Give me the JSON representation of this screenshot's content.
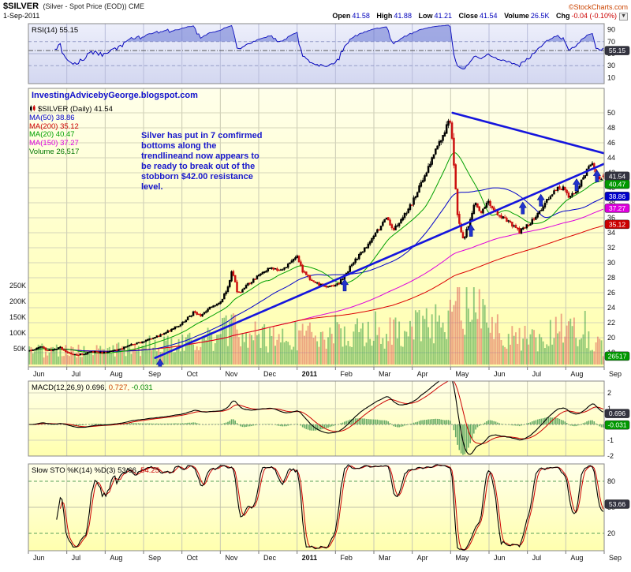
{
  "header": {
    "symbol": "$SILVER",
    "description": "(Silver - Spot Price (EOD)) CME",
    "credit": "©StockCharts.com",
    "date": "1-Sep-2011",
    "quote": {
      "open_label": "Open",
      "open_value": "41.58",
      "high_label": "High",
      "high_value": "41.88",
      "low_label": "Low",
      "low_value": "41.21",
      "close_label": "Close",
      "close_value": "41.54",
      "volume_label": "Volume",
      "volume_value": "26.5K",
      "chg_label": "Chg",
      "chg_value": "-0.04 (-0.10%)"
    },
    "menu_icon": "▼"
  },
  "rsi_panel": {
    "label": "RSI(14) 55.15",
    "axis": [
      {
        "text": "90",
        "v": 90
      },
      {
        "text": "70",
        "v": 70
      },
      {
        "text": "50",
        "v": 50
      },
      {
        "text": "30",
        "v": 30
      },
      {
        "text": "10",
        "v": 10
      }
    ],
    "tag": {
      "text": "55.15",
      "v": 55.15,
      "bg": "#333340"
    }
  },
  "main_panel": {
    "blog_text": "InvestingAdvicebyGeorge.blogspot.com",
    "legend": [
      {
        "label": "$SILVER (Daily) 41.54"
      },
      {
        "label": "MA(50) 38.86"
      },
      {
        "label": "MA(200) 35.12"
      },
      {
        "label": "MA(20) 40.47"
      },
      {
        "label": "MA(150) 37.27"
      },
      {
        "label": "Volume 26,517"
      }
    ],
    "annotation": {
      "lines": [
        "Silver has put in 7 comfirmed",
        "bottoms along the",
        "trendlineand now appears to",
        "be ready to break out of the",
        "stobborn $42.00 resistance",
        "level."
      ]
    },
    "price_axis": [
      {
        "text": "50",
        "v": 50
      },
      {
        "text": "48",
        "v": 48
      },
      {
        "text": "46",
        "v": 46
      },
      {
        "text": "44",
        "v": 44
      },
      {
        "text": "42",
        "v": 42
      },
      {
        "text": "40",
        "v": 40
      },
      {
        "text": "38",
        "v": 38
      },
      {
        "text": "36",
        "v": 36
      },
      {
        "text": "34",
        "v": 34
      },
      {
        "text": "32",
        "v": 32
      },
      {
        "text": "30",
        "v": 30
      },
      {
        "text": "28",
        "v": 28
      },
      {
        "text": "26",
        "v": 26
      },
      {
        "text": "24",
        "v": 24
      },
      {
        "text": "22",
        "v": 22
      },
      {
        "text": "20",
        "v": 20
      },
      {
        "text": "18",
        "v": 18
      }
    ],
    "volume_axis": [
      {
        "text": "250K",
        "k": 250
      },
      {
        "text": "200K",
        "k": 200
      },
      {
        "text": "150K",
        "k": 150
      },
      {
        "text": "100K",
        "k": 100
      },
      {
        "text": "50K",
        "k": 50
      }
    ],
    "price_tags": [
      {
        "text": "41.54",
        "v": 41.54,
        "bg": "#333340"
      },
      {
        "text": "40.47",
        "v": 40.47,
        "bg": "#009900"
      },
      {
        "text": "38.86",
        "v": 38.86,
        "bg": "#0000cc"
      },
      {
        "text": "37.27",
        "v": 37.27,
        "bg": "#dd00dd"
      },
      {
        "text": "35.12",
        "v": 35.12,
        "bg": "#cc0000"
      }
    ],
    "volume_tag": {
      "text": "26517",
      "k": 26.5,
      "bg": "#009900"
    }
  },
  "macd_panel": {
    "name": "MACD(12,26,9)",
    "v1": "0.696,",
    "v2": "0.727,",
    "v3": "-0.031",
    "axis": [
      {
        "text": "2",
        "v": 2
      },
      {
        "text": "1",
        "v": 1
      },
      {
        "text": "-1",
        "v": -1
      },
      {
        "text": "-2",
        "v": -2
      }
    ],
    "tags": [
      {
        "text": "0.696",
        "v": 0.696,
        "bg": "#333340"
      },
      {
        "text": "-0.031",
        "v": -0.031,
        "bg": "#009900"
      }
    ]
  },
  "sto_panel": {
    "name": "Slow STO %K(14) %D(3)",
    "v1": "53.66,",
    "v2": "54.25",
    "axis": [
      {
        "text": "80",
        "v": 80
      },
      {
        "text": "50",
        "v": 50
      },
      {
        "text": "20",
        "v": 20
      }
    ],
    "tag": {
      "text": "53.66",
      "v": 53.66,
      "bg": "#333340"
    }
  },
  "timeline": {
    "months": [
      "Jun",
      "Jul",
      "Aug",
      "Sep",
      "Oct",
      "Nov",
      "Dec",
      "2011",
      "Feb",
      "Mar",
      "Apr",
      "May",
      "Jun",
      "Jul",
      "Aug",
      "Sep"
    ]
  },
  "chart_data": {
    "type": "candlestick",
    "title": "$SILVER (Silver - Spot Price (EOD)) CME",
    "x_domain": "Jun-2010 to Sep-2011 (15 months, t in months)",
    "y_range": [
      18,
      50
    ],
    "grid_step": 2,
    "bars": 316,
    "last_bar": {
      "o": 41.58,
      "h": 41.88,
      "l": 41.21,
      "c": 41.54,
      "v": 26.5
    },
    "price_keypoints": [
      [
        0,
        18.3
      ],
      [
        0.3,
        18.8
      ],
      [
        0.5,
        18.2
      ],
      [
        0.8,
        18.7
      ],
      [
        1.0,
        17.9
      ],
      [
        1.3,
        17.7
      ],
      [
        1.6,
        18.1
      ],
      [
        2.0,
        18.0
      ],
      [
        2.4,
        18.5
      ],
      [
        2.7,
        19.1
      ],
      [
        3.0,
        19.5
      ],
      [
        3.4,
        20.3
      ],
      [
        3.7,
        21.0
      ],
      [
        4.0,
        21.9
      ],
      [
        4.3,
        23.4
      ],
      [
        4.5,
        23.0
      ],
      [
        4.8,
        24.3
      ],
      [
        5.0,
        24.7
      ],
      [
        5.2,
        26.9
      ],
      [
        5.3,
        28.9
      ],
      [
        5.45,
        25.8
      ],
      [
        5.7,
        27.0
      ],
      [
        6.0,
        28.4
      ],
      [
        6.3,
        29.4
      ],
      [
        6.6,
        28.9
      ],
      [
        7.0,
        30.9
      ],
      [
        7.15,
        28.8
      ],
      [
        7.4,
        27.4
      ],
      [
        7.8,
        26.8
      ],
      [
        8.1,
        27.3
      ],
      [
        8.4,
        29.5
      ],
      [
        8.7,
        31.5
      ],
      [
        9.0,
        33.4
      ],
      [
        9.2,
        35.1
      ],
      [
        9.35,
        36.0
      ],
      [
        9.5,
        34.3
      ],
      [
        9.75,
        35.9
      ],
      [
        10.0,
        37.9
      ],
      [
        10.3,
        41.2
      ],
      [
        10.6,
        44.8
      ],
      [
        10.85,
        47.5
      ],
      [
        10.95,
        49.3
      ],
      [
        11.02,
        48.2
      ],
      [
        11.1,
        42.5
      ],
      [
        11.2,
        35.8
      ],
      [
        11.35,
        33.2
      ],
      [
        11.5,
        35.3
      ],
      [
        11.65,
        38.1
      ],
      [
        11.8,
        36.8
      ],
      [
        12.0,
        38.2
      ],
      [
        12.25,
        36.4
      ],
      [
        12.5,
        35.6
      ],
      [
        12.8,
        34.1
      ],
      [
        13.0,
        34.9
      ],
      [
        13.25,
        36.1
      ],
      [
        13.5,
        38.3
      ],
      [
        13.8,
        40.0
      ],
      [
        14.0,
        39.9
      ],
      [
        14.1,
        38.9
      ],
      [
        14.3,
        39.4
      ],
      [
        14.55,
        42.2
      ],
      [
        14.7,
        43.6
      ],
      [
        14.8,
        41.8
      ],
      [
        14.9,
        40.9
      ],
      [
        15,
        41.54
      ]
    ],
    "volume_keypoints": [
      [
        0,
        42
      ],
      [
        0.5,
        38
      ],
      [
        1,
        36
      ],
      [
        1.5,
        35
      ],
      [
        2,
        38
      ],
      [
        2.5,
        44
      ],
      [
        3,
        50
      ],
      [
        3.5,
        55
      ],
      [
        4,
        58
      ],
      [
        4.5,
        62
      ],
      [
        5,
        80
      ],
      [
        5.3,
        115
      ],
      [
        5.6,
        85
      ],
      [
        6,
        72
      ],
      [
        6.5,
        68
      ],
      [
        7,
        82
      ],
      [
        7.5,
        78
      ],
      [
        8,
        88
      ],
      [
        8.5,
        82
      ],
      [
        9,
        92
      ],
      [
        9.5,
        84
      ],
      [
        10,
        92
      ],
      [
        10.5,
        105
      ],
      [
        10.9,
        125
      ],
      [
        11.05,
        170
      ],
      [
        11.2,
        195
      ],
      [
        11.4,
        175
      ],
      [
        11.7,
        140
      ],
      [
        12,
        105
      ],
      [
        12.5,
        85
      ],
      [
        13,
        72
      ],
      [
        13.5,
        78
      ],
      [
        14,
        95
      ],
      [
        14.3,
        108
      ],
      [
        14.6,
        88
      ],
      [
        15,
        40
      ]
    ],
    "overlays": [
      {
        "type": "sma",
        "period": 20,
        "last": 40.47
      },
      {
        "type": "sma",
        "period": 50,
        "last": 38.86
      },
      {
        "type": "sma",
        "period": 150,
        "last": 37.27
      },
      {
        "type": "sma",
        "period": 200,
        "last": 35.12
      }
    ],
    "indicators": [
      {
        "type": "rsi",
        "period": 14,
        "last": 55.15
      },
      {
        "type": "macd",
        "params": [
          12,
          26,
          9
        ],
        "last": [
          0.696,
          0.727,
          -0.031
        ]
      },
      {
        "type": "slow_sto",
        "params": [
          14,
          3
        ],
        "last": [
          53.66,
          54.25
        ]
      }
    ],
    "trendlines": [
      {
        "name": "ascending-support",
        "from": [
          3.3,
          17.3
        ],
        "to": [
          15,
          43.2
        ]
      },
      {
        "name": "descending-resistance",
        "from": [
          11.05,
          50.0
        ],
        "to": [
          15,
          44.6
        ]
      }
    ],
    "arrows_t": [
      3.43,
      8.24,
      11.53,
      12.88,
      13.35,
      14.28,
      14.81
    ],
    "colors": {
      "up": "#000000",
      "down": "#cc1111",
      "vol_up": "rgba(40,150,60,0.5)",
      "vol_down": "rgba(220,80,80,0.5)",
      "ma20": "#00a000",
      "ma50": "#0000cc",
      "ma150": "#dd00dd",
      "ma200": "#dd0000",
      "rsi": "#0000bb",
      "rsi_fill": "rgba(100,115,210,0.55)",
      "macd": "#000000",
      "signal": "#cc0000",
      "hist": "#66aa66",
      "sto_k": "#000000",
      "sto_d": "#cc0000",
      "trend": "#1515dd",
      "arrow": "#2233cc"
    }
  }
}
